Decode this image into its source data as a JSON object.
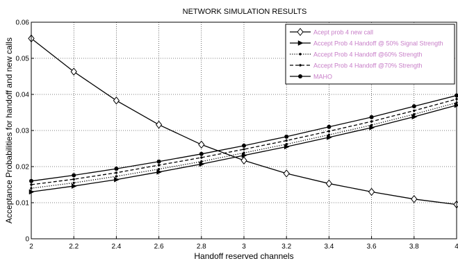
{
  "chart_data": {
    "type": "line",
    "title": "NETWORK SIMULATION RESULTS",
    "xlabel": "Handoff reserved channels",
    "ylabel": "Acceptance Probabilities for handoff and new calls",
    "xlim": [
      2,
      4
    ],
    "ylim": [
      0,
      0.06
    ],
    "x_ticks": [
      "2",
      "2.2",
      "2.4",
      "2.6",
      "2.8",
      "3",
      "3.2",
      "3.4",
      "3.6",
      "3.8",
      "4"
    ],
    "y_ticks": [
      "0",
      "0.01",
      "0.02",
      "0.03",
      "0.04",
      "0.05",
      "0.06"
    ],
    "grid": true,
    "legend_position": "top-right",
    "x": [
      2,
      2.2,
      2.4,
      2.6,
      2.8,
      3,
      3.2,
      3.4,
      3.6,
      3.8,
      4
    ],
    "series": [
      {
        "name": "Acept prob 4 new call",
        "marker": "diamond",
        "dash": "solid",
        "values": [
          0.0555,
          0.0463,
          0.0383,
          0.0316,
          0.0261,
          0.0217,
          0.0181,
          0.0153,
          0.013,
          0.011,
          0.0095
        ]
      },
      {
        "name": "Accept Prob 4 Handoff @ 50% Signal Strength",
        "marker": "triangle-right",
        "dash": "solid",
        "values": [
          0.013,
          0.0146,
          0.0164,
          0.0185,
          0.0207,
          0.0231,
          0.0255,
          0.0281,
          0.0308,
          0.0338,
          0.037
        ]
      },
      {
        "name": "Accept Prob 4 Handoff @60%  Strength",
        "marker": "dot",
        "dash": "dotted",
        "values": [
          0.014,
          0.0155,
          0.0173,
          0.0193,
          0.0214,
          0.0238,
          0.0262,
          0.0288,
          0.0315,
          0.0345,
          0.0377
        ]
      },
      {
        "name": "Accept Prob 4 Handoff @70%  Strength",
        "marker": "dot",
        "dash": "dashed",
        "values": [
          0.015,
          0.0165,
          0.0183,
          0.0204,
          0.0225,
          0.0248,
          0.0272,
          0.0298,
          0.0325,
          0.0355,
          0.0387
        ]
      },
      {
        "name": "MAHO",
        "marker": "filled-circle",
        "dash": "solid",
        "values": [
          0.016,
          0.0176,
          0.0194,
          0.0214,
          0.0235,
          0.0258,
          0.0283,
          0.031,
          0.0337,
          0.0367,
          0.0397
        ]
      }
    ]
  }
}
